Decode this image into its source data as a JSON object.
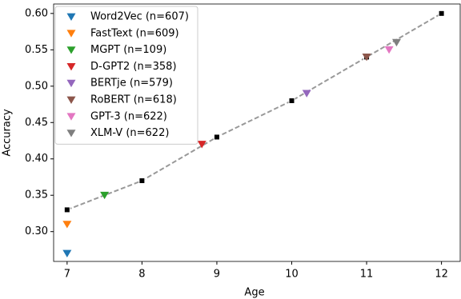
{
  "chart_data": {
    "type": "scatter",
    "x_label": "Age",
    "y_label": "Accuracy",
    "xlim": [
      6.82,
      12.25
    ],
    "ylim": [
      0.259,
      0.613
    ],
    "xticks": [
      7,
      8,
      9,
      10,
      11,
      12
    ],
    "yticks": [
      {
        "value": 0.3,
        "label": "0.30"
      },
      {
        "value": 0.35,
        "label": "0.35"
      },
      {
        "value": 0.4,
        "label": "0.40"
      },
      {
        "value": 0.45,
        "label": "0.45"
      },
      {
        "value": 0.5,
        "label": "0.50"
      },
      {
        "value": 0.55,
        "label": "0.55"
      },
      {
        "value": 0.6,
        "label": "0.60"
      }
    ],
    "legend": "upper left",
    "trend": {
      "color": "#999999",
      "x": [
        7,
        8,
        9,
        10,
        11,
        12
      ],
      "values": [
        0.33,
        0.37,
        0.43,
        0.48,
        0.54,
        0.6
      ]
    },
    "series": [
      {
        "name": "Word2Vec (n=607)",
        "color": "#1f77b4",
        "x": [
          7
        ],
        "values": [
          0.27
        ]
      },
      {
        "name": "FastText (n=609)",
        "color": "#ff7f0e",
        "x": [
          7
        ],
        "values": [
          0.31
        ]
      },
      {
        "name": "MGPT (n=109)",
        "color": "#2ca02c",
        "x": [
          7.5
        ],
        "values": [
          0.35
        ]
      },
      {
        "name": "D-GPT2 (n=358)",
        "color": "#d62728",
        "x": [
          8.8
        ],
        "values": [
          0.42
        ]
      },
      {
        "name": "BERTje (n=579)",
        "color": "#9467bd",
        "x": [
          10.2
        ],
        "values": [
          0.49
        ]
      },
      {
        "name": "RoBERT (n=618)",
        "color": "#8c564b",
        "x": [
          11
        ],
        "values": [
          0.54
        ]
      },
      {
        "name": "GPT-3 (n=622)",
        "color": "#e377c2",
        "x": [
          11.3
        ],
        "values": [
          0.55
        ]
      },
      {
        "name": "XLM-V (n=622)",
        "color": "#7f7f7f",
        "x": [
          11.4
        ],
        "values": [
          0.56
        ]
      }
    ]
  }
}
